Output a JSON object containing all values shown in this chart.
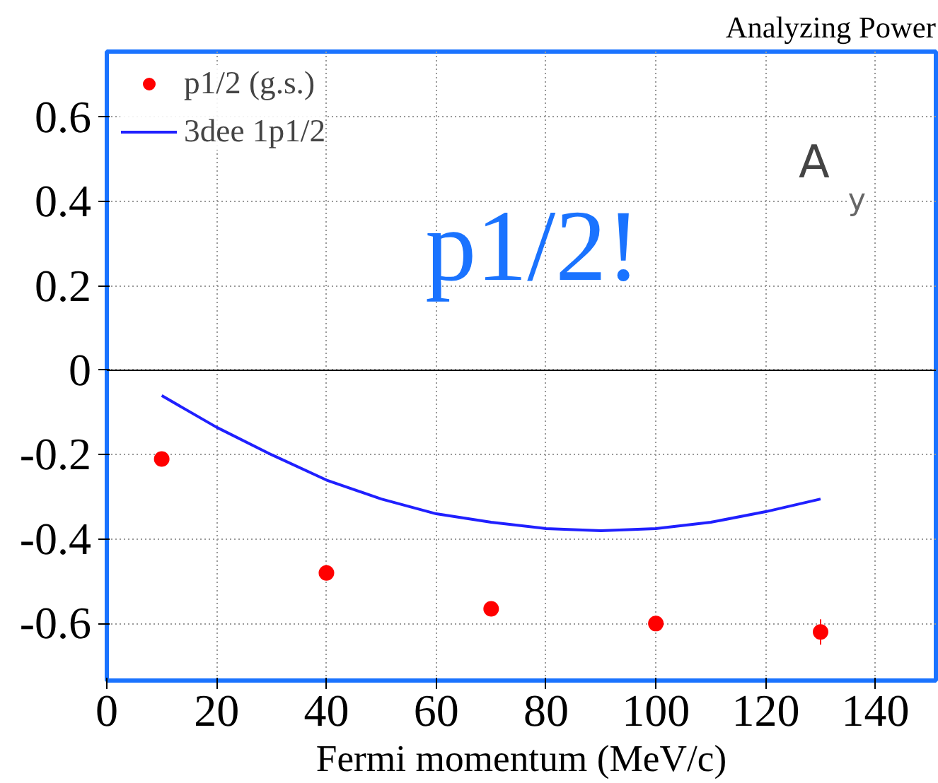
{
  "chart_data": {
    "type": "scatter",
    "title": "Analyzing Power",
    "xlabel": "Fermi momentum (MeV/c)",
    "xlim": [
      0,
      151
    ],
    "ylim": [
      -0.735,
      0.755
    ],
    "xticks": [
      0,
      20,
      40,
      60,
      80,
      100,
      120,
      140
    ],
    "yticks": [
      -0.6,
      -0.4,
      -0.2,
      0,
      0.2,
      0.4,
      0.6
    ],
    "grid": true,
    "legend": "top left",
    "marker": "circle",
    "series": [
      {
        "name": "p1/2 (g.s.)",
        "color": "#ff0000",
        "x": [
          10,
          40,
          70,
          100,
          130
        ],
        "values": [
          -0.21,
          -0.48,
          -0.565,
          -0.6,
          -0.62
        ],
        "errors": [
          null,
          null,
          null,
          null,
          0.03
        ]
      },
      {
        "name": "3dee 1p1/2",
        "type": "line",
        "color": "#2020ff",
        "marker": "none",
        "x": [
          10,
          20,
          30,
          40,
          50,
          60,
          70,
          80,
          90,
          100,
          110,
          120,
          130
        ],
        "values": [
          -0.06,
          -0.135,
          -0.2,
          -0.26,
          -0.305,
          -0.34,
          -0.36,
          -0.375,
          -0.38,
          -0.375,
          -0.36,
          -0.335,
          -0.305
        ]
      }
    ],
    "ref_lines": [
      {
        "axis": "y",
        "value": 0,
        "label": null,
        "color": "#000000",
        "line_style": "solid"
      }
    ],
    "annotations": [
      "p1/2!",
      "A$_{y}$"
    ]
  }
}
